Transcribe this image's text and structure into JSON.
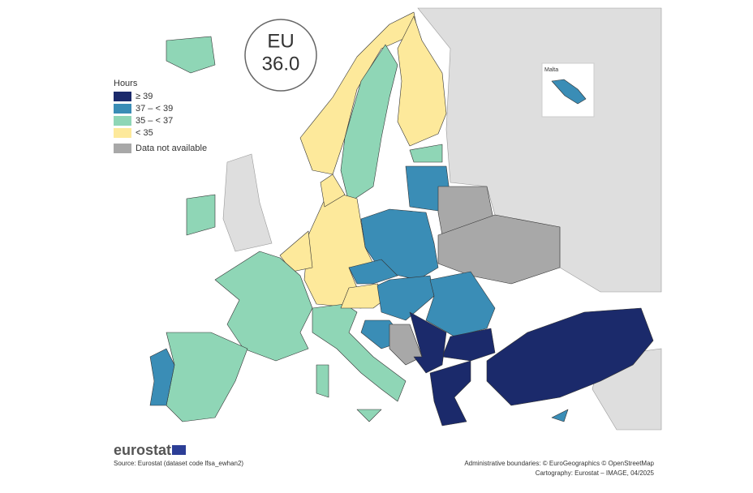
{
  "legend": {
    "title": "Hours",
    "items": [
      {
        "label": "≥ 39",
        "color": "#1b2a6b"
      },
      {
        "label": "37 – < 39",
        "color": "#3a8db6"
      },
      {
        "label": "35 – < 37",
        "color": "#8fd6b6"
      },
      {
        "label": "< 35",
        "color": "#fde99b"
      },
      {
        "label": "Data not available",
        "color": "#a8a8a8"
      }
    ]
  },
  "eu_badge": {
    "label": "EU",
    "value": "36.0"
  },
  "inset": {
    "label": "Malta"
  },
  "footer": {
    "logo": "eurostat",
    "source": "Source: Eurostat (dataset code lfsa_ewhan2)",
    "boundaries": "Administrative boundaries: © EuroGeographics © OpenStreetMap",
    "cartography": "Cartography: Eurostat – IMAGE, 04/2025"
  }
}
